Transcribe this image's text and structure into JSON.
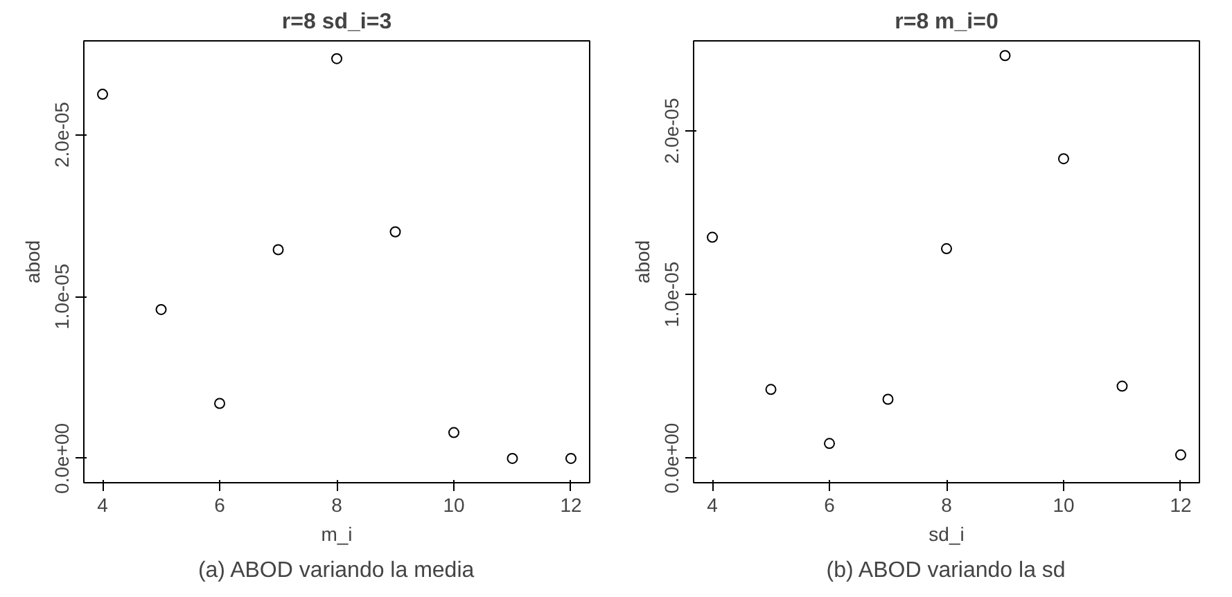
{
  "chart_data": [
    {
      "type": "scatter",
      "title": "r=8 sd_i=3",
      "xlabel": "m_i",
      "ylabel": "abod",
      "marker": "circle",
      "grid": false,
      "color": "#000000",
      "x": [
        4,
        5,
        6,
        7,
        8,
        9,
        10,
        11,
        12
      ],
      "values": [
        2.25e-05,
        9.2e-06,
        3.4e-06,
        1.29e-05,
        2.47e-05,
        1.4e-05,
        1.6e-06,
        0,
        0
      ],
      "xlim": [
        3.68,
        12.32
      ],
      "xticks": [
        4,
        6,
        8,
        10,
        12
      ],
      "ylim": [
        -1.5e-06,
        2.58e-05
      ],
      "yticks": [
        {
          "value": 0,
          "label": "0.0e+00"
        },
        {
          "value": 1e-05,
          "label": "1.0e-05"
        },
        {
          "value": 2e-05,
          "label": "2.0e-05"
        }
      ],
      "annotations": [
        "(a) ABOD variando la media"
      ]
    },
    {
      "type": "scatter",
      "title": "r=8 m_i=0",
      "xlabel": "sd_i",
      "ylabel": "abod",
      "marker": "circle",
      "grid": false,
      "color": "#000000",
      "x": [
        4,
        5,
        6,
        7,
        8,
        9,
        10,
        11,
        12
      ],
      "values": [
        1.35e-05,
        4.2e-06,
        9e-07,
        3.6e-06,
        1.28e-05,
        2.46e-05,
        1.83e-05,
        4.4e-06,
        2e-07
      ],
      "xlim": [
        3.68,
        12.32
      ],
      "xticks": [
        4,
        6,
        8,
        10,
        12
      ],
      "ylim": [
        -1.5e-06,
        2.55e-05
      ],
      "yticks": [
        {
          "value": 0,
          "label": "0.0e+00"
        },
        {
          "value": 1e-05,
          "label": "1.0e-05"
        },
        {
          "value": 2e-05,
          "label": "2.0e-05"
        }
      ],
      "annotations": [
        "(b) ABOD variando la sd"
      ]
    }
  ]
}
